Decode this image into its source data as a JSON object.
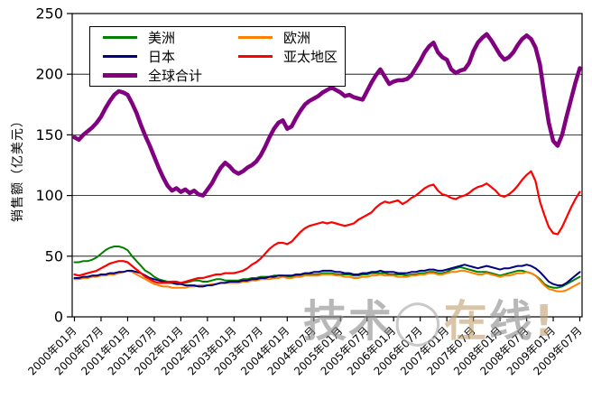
{
  "chart_data": {
    "type": "line",
    "title": "",
    "y_axis": {
      "title": "销售额（亿美元）",
      "min": 0,
      "max": 250,
      "step": 50,
      "tick_labels": [
        "0",
        "50",
        "100",
        "150",
        "200",
        "250"
      ]
    },
    "x_axis": {
      "tick_labels": [
        "2000年01月",
        "2000年07月",
        "2001年01月",
        "2001年07月",
        "2002年01月",
        "2002年07月",
        "2003年01月",
        "2003年07月",
        "2004年01月",
        "2004年07月",
        "2005年01月",
        "2005年07月",
        "2006年01月",
        "2006年07月",
        "2007年01月",
        "2007年07月",
        "2008年01月",
        "2008年07月",
        "2009年01月",
        "2009年07月"
      ],
      "label_rotation_deg": -45,
      "months_per_tick": 6
    },
    "grid": "horizontal",
    "legend_position": "top-left-inside",
    "series": [
      {
        "name": "美洲",
        "color": "#008000",
        "line_width": 2,
        "values": [
          45,
          45,
          46,
          46,
          47,
          49,
          52,
          55,
          57,
          58,
          58,
          57,
          55,
          50,
          46,
          42,
          38,
          36,
          33,
          31,
          30,
          29,
          29,
          28,
          28,
          28,
          29,
          30,
          30,
          29,
          29,
          30,
          31,
          31,
          30,
          30,
          30,
          30,
          31,
          31,
          32,
          32,
          33,
          33,
          33,
          34,
          34,
          34,
          33,
          33,
          34,
          34,
          35,
          35,
          35,
          35,
          36,
          36,
          36,
          35,
          35,
          35,
          35,
          34,
          34,
          35,
          35,
          36,
          36,
          36,
          36,
          35,
          35,
          35,
          35,
          34,
          35,
          35,
          36,
          36,
          37,
          37,
          36,
          36,
          37,
          39,
          40,
          41,
          40,
          39,
          38,
          37,
          37,
          37,
          36,
          35,
          34,
          35,
          36,
          37,
          38,
          38,
          37,
          36,
          34,
          31,
          27,
          25,
          24,
          24,
          25,
          27,
          29,
          31,
          33
        ]
      },
      {
        "name": "欧洲",
        "color": "#FF8000",
        "line_width": 2,
        "values": [
          31,
          31,
          32,
          32,
          33,
          33,
          34,
          34,
          35,
          35,
          36,
          37,
          38,
          37,
          35,
          33,
          31,
          29,
          27,
          26,
          25,
          25,
          24,
          24,
          24,
          24,
          25,
          25,
          26,
          26,
          26,
          27,
          27,
          28,
          28,
          28,
          28,
          28,
          29,
          29,
          30,
          30,
          31,
          31,
          31,
          32,
          32,
          33,
          32,
          32,
          33,
          33,
          34,
          34,
          34,
          34,
          35,
          35,
          35,
          34,
          34,
          33,
          33,
          32,
          32,
          33,
          33,
          34,
          34,
          35,
          34,
          34,
          34,
          33,
          33,
          33,
          34,
          34,
          35,
          35,
          36,
          36,
          35,
          35,
          36,
          37,
          37,
          38,
          38,
          37,
          36,
          35,
          35,
          36,
          35,
          34,
          33,
          34,
          34,
          35,
          36,
          36,
          37,
          36,
          34,
          30,
          26,
          23,
          22,
          21,
          21,
          22,
          24,
          26,
          28
        ]
      },
      {
        "name": "日本",
        "color": "#000080",
        "line_width": 2,
        "values": [
          32,
          32,
          33,
          33,
          34,
          34,
          35,
          35,
          36,
          36,
          37,
          37,
          38,
          38,
          37,
          36,
          34,
          32,
          31,
          30,
          29,
          28,
          28,
          27,
          27,
          26,
          26,
          26,
          25,
          25,
          26,
          26,
          27,
          28,
          28,
          29,
          29,
          29,
          30,
          30,
          31,
          31,
          32,
          32,
          33,
          33,
          34,
          34,
          34,
          34,
          35,
          35,
          36,
          36,
          37,
          37,
          38,
          38,
          38,
          37,
          37,
          36,
          36,
          35,
          35,
          36,
          36,
          37,
          37,
          38,
          37,
          37,
          37,
          36,
          36,
          36,
          37,
          37,
          38,
          38,
          39,
          39,
          38,
          38,
          39,
          40,
          41,
          42,
          43,
          42,
          41,
          40,
          41,
          42,
          41,
          40,
          39,
          40,
          40,
          41,
          42,
          42,
          43,
          42,
          40,
          37,
          33,
          29,
          27,
          26,
          26,
          28,
          31,
          34,
          37
        ]
      },
      {
        "name": "亚太地区",
        "color": "#FF0000",
        "line_width": 2.2,
        "values": [
          35,
          34,
          35,
          36,
          37,
          38,
          40,
          42,
          44,
          45,
          46,
          46,
          45,
          42,
          39,
          36,
          33,
          31,
          29,
          28,
          28,
          28,
          29,
          29,
          28,
          29,
          30,
          31,
          32,
          32,
          33,
          34,
          35,
          35,
          36,
          36,
          36,
          37,
          38,
          40,
          43,
          45,
          48,
          52,
          56,
          59,
          61,
          61,
          60,
          62,
          66,
          70,
          73,
          75,
          76,
          77,
          78,
          77,
          78,
          77,
          76,
          75,
          76,
          77,
          80,
          82,
          84,
          86,
          90,
          93,
          95,
          94,
          95,
          96,
          93,
          95,
          98,
          100,
          103,
          106,
          108,
          109,
          104,
          101,
          100,
          98,
          97,
          99,
          100,
          102,
          105,
          107,
          108,
          110,
          107,
          104,
          100,
          99,
          101,
          104,
          108,
          113,
          117,
          120,
          112,
          95,
          84,
          74,
          69,
          68,
          74,
          82,
          90,
          97,
          103
        ]
      },
      {
        "name": "全球合计",
        "color": "#800080",
        "line_width": 4.5,
        "values": [
          148,
          146,
          150,
          153,
          156,
          160,
          165,
          172,
          178,
          183,
          186,
          185,
          183,
          176,
          168,
          158,
          149,
          141,
          132,
          123,
          115,
          108,
          104,
          106,
          103,
          105,
          102,
          104,
          101,
          100,
          105,
          110,
          117,
          123,
          127,
          124,
          120,
          118,
          120,
          123,
          125,
          128,
          133,
          140,
          148,
          155,
          160,
          162,
          155,
          157,
          164,
          170,
          175,
          178,
          180,
          182,
          185,
          187,
          189,
          187,
          185,
          182,
          183,
          181,
          180,
          179,
          186,
          193,
          199,
          204,
          198,
          192,
          194,
          195,
          195,
          196,
          199,
          205,
          211,
          218,
          223,
          226,
          218,
          214,
          212,
          204,
          201,
          203,
          204,
          209,
          219,
          226,
          230,
          233,
          228,
          222,
          216,
          212,
          214,
          218,
          224,
          229,
          232,
          229,
          222,
          208,
          183,
          160,
          145,
          141,
          150,
          165,
          179,
          193,
          205
        ]
      }
    ]
  },
  "legend": {
    "items": [
      {
        "label": "美洲",
        "color": "#008000",
        "thick": false
      },
      {
        "label": "欧洲",
        "color": "#FF8000",
        "thick": false
      },
      {
        "label": "日本",
        "color": "#000080",
        "thick": false
      },
      {
        "label": "亚太地区",
        "color": "#FF0000",
        "thick": false
      },
      {
        "label": "全球合计",
        "color": "#800080",
        "thick": true
      }
    ]
  },
  "watermark": {
    "parts": [
      {
        "text": "技术",
        "color": "#8e8e8e"
      },
      {
        "text": "◯",
        "color": "#a9a9a9"
      },
      {
        "text": "在",
        "color": "#c2a477"
      },
      {
        "text": "线",
        "color": "#8e8e8e"
      },
      {
        "text": "!",
        "color": "#c2a477"
      }
    ]
  }
}
